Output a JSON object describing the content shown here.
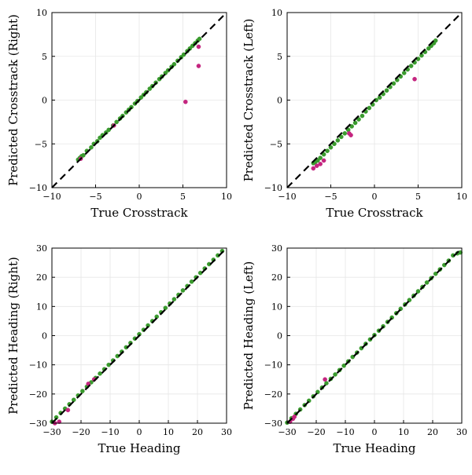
{
  "colors": {
    "green": "#3a9b2e",
    "magenta": "#c4257f",
    "diagonal": "#000000",
    "grid": "#e6e6e6"
  },
  "chart_data": [
    {
      "type": "scatter",
      "xlabel": "True Crosstrack",
      "ylabel": "Predicted Crosstrack (Right)",
      "xlim": [
        -10,
        10
      ],
      "ylim": [
        -10,
        10
      ],
      "xticks": [
        -10,
        -5,
        0,
        5,
        10
      ],
      "yticks": [
        -10,
        -5,
        0,
        5,
        10
      ],
      "grid": true,
      "reference_line": "y = x (dashed)",
      "series": [
        {
          "color": "green",
          "points": [
            [
              -7.0,
              -6.8
            ],
            [
              -6.8,
              -6.6
            ],
            [
              -6.6,
              -6.4
            ],
            [
              -6.4,
              -6.3
            ],
            [
              -6.0,
              -5.8
            ],
            [
              -5.5,
              -5.4
            ],
            [
              -5.2,
              -5.0
            ],
            [
              -4.8,
              -4.7
            ],
            [
              -4.5,
              -4.3
            ],
            [
              -4.2,
              -4.0
            ],
            [
              -3.8,
              -3.7
            ],
            [
              -3.5,
              -3.4
            ],
            [
              -3.0,
              -2.9
            ],
            [
              -2.6,
              -2.5
            ],
            [
              -2.2,
              -2.1
            ],
            [
              -1.9,
              -1.8
            ],
            [
              -1.5,
              -1.4
            ],
            [
              -1.2,
              -1.1
            ],
            [
              -0.9,
              -0.8
            ],
            [
              -0.5,
              -0.4
            ],
            [
              -0.2,
              -0.1
            ],
            [
              0.2,
              0.3
            ],
            [
              0.5,
              0.6
            ],
            [
              0.8,
              0.9
            ],
            [
              1.2,
              1.3
            ],
            [
              1.5,
              1.6
            ],
            [
              1.9,
              2.0
            ],
            [
              2.3,
              2.4
            ],
            [
              2.6,
              2.7
            ],
            [
              3.0,
              3.1
            ],
            [
              3.3,
              3.4
            ],
            [
              3.7,
              3.8
            ],
            [
              4.0,
              4.1
            ],
            [
              4.4,
              4.5
            ],
            [
              4.8,
              4.9
            ],
            [
              5.1,
              5.2
            ],
            [
              5.5,
              5.6
            ],
            [
              5.8,
              5.9
            ],
            [
              6.1,
              6.2
            ],
            [
              6.4,
              6.5
            ],
            [
              6.7,
              6.8
            ],
            [
              6.9,
              7.0
            ]
          ]
        },
        {
          "color": "magenta",
          "points": [
            [
              -2.9,
              -2.9
            ],
            [
              5.3,
              -0.2
            ],
            [
              6.8,
              3.9
            ],
            [
              6.8,
              6.1
            ],
            [
              -6.7,
              -6.7
            ]
          ]
        }
      ]
    },
    {
      "type": "scatter",
      "xlabel": "True Crosstrack",
      "ylabel": "Predicted Crosstrack (Left)",
      "xlim": [
        -10,
        10
      ],
      "ylim": [
        -10,
        10
      ],
      "xticks": [
        -10,
        -5,
        0,
        5,
        10
      ],
      "yticks": [
        -10,
        -5,
        0,
        5,
        10
      ],
      "grid": true,
      "reference_line": "y = x (dashed)",
      "series": [
        {
          "color": "green",
          "points": [
            [
              -7.0,
              -7.2
            ],
            [
              -6.8,
              -7.1
            ],
            [
              -6.5,
              -6.9
            ],
            [
              -6.2,
              -6.6
            ],
            [
              -5.8,
              -6.2
            ],
            [
              -5.4,
              -5.8
            ],
            [
              -5.0,
              -5.4
            ],
            [
              -4.6,
              -5.0
            ],
            [
              -4.2,
              -4.6
            ],
            [
              -3.8,
              -4.2
            ],
            [
              -3.4,
              -3.8
            ],
            [
              -3.0,
              -3.4
            ],
            [
              -2.6,
              -3.0
            ],
            [
              -2.2,
              -2.6
            ],
            [
              -1.8,
              -2.2
            ],
            [
              -1.4,
              -1.8
            ],
            [
              -1.0,
              -1.3
            ],
            [
              -0.6,
              -0.9
            ],
            [
              -0.2,
              -0.5
            ],
            [
              0.2,
              0.0
            ],
            [
              0.6,
              0.3
            ],
            [
              1.0,
              0.7
            ],
            [
              1.4,
              1.1
            ],
            [
              1.8,
              1.5
            ],
            [
              2.2,
              1.9
            ],
            [
              2.6,
              2.3
            ],
            [
              3.0,
              2.7
            ],
            [
              3.4,
              3.1
            ],
            [
              3.8,
              3.5
            ],
            [
              4.2,
              3.9
            ],
            [
              4.6,
              4.3
            ],
            [
              5.0,
              4.7
            ],
            [
              5.4,
              5.1
            ],
            [
              5.8,
              5.5
            ],
            [
              6.2,
              5.9
            ],
            [
              6.5,
              6.2
            ],
            [
              6.8,
              6.5
            ],
            [
              7.0,
              6.8
            ]
          ]
        },
        {
          "color": "magenta",
          "points": [
            [
              -7.0,
              -7.8
            ],
            [
              -6.6,
              -7.5
            ],
            [
              -6.2,
              -7.3
            ],
            [
              -5.8,
              -6.9
            ],
            [
              -2.9,
              -3.8
            ],
            [
              -2.7,
              -4.0
            ],
            [
              4.6,
              2.4
            ]
          ]
        }
      ]
    },
    {
      "type": "scatter",
      "xlabel": "True Heading",
      "ylabel": "Predicted Heading (Right)",
      "xlim": [
        -30,
        30
      ],
      "ylim": [
        -30,
        30
      ],
      "xticks": [
        -30,
        -20,
        -10,
        0,
        10,
        20,
        30
      ],
      "yticks": [
        -30,
        -20,
        -10,
        0,
        10,
        20,
        30
      ],
      "grid": true,
      "reference_line": "y = x (dashed)",
      "series": [
        {
          "color": "green",
          "points": [
            [
              -30,
              -29.5
            ],
            [
              -28.5,
              -28
            ],
            [
              -27,
              -26.5
            ],
            [
              -25.5,
              -25
            ],
            [
              -24,
              -23.5
            ],
            [
              -22.5,
              -22
            ],
            [
              -21,
              -20.5
            ],
            [
              -19.5,
              -19
            ],
            [
              -18,
              -17.5
            ],
            [
              -16.5,
              -16
            ],
            [
              -15,
              -14.5
            ],
            [
              -13.5,
              -13
            ],
            [
              -12,
              -11.5
            ],
            [
              -10.5,
              -10
            ],
            [
              -9,
              -8.5
            ],
            [
              -7.5,
              -7
            ],
            [
              -6,
              -5.5
            ],
            [
              -4.5,
              -4
            ],
            [
              -3,
              -2.5
            ],
            [
              -1.5,
              -1
            ],
            [
              0,
              0.5
            ],
            [
              1.5,
              2
            ],
            [
              3,
              3.5
            ],
            [
              4.5,
              5
            ],
            [
              6,
              6.5
            ],
            [
              7.5,
              8
            ],
            [
              9,
              9.5
            ],
            [
              10.5,
              11
            ],
            [
              12,
              12.5
            ],
            [
              13.5,
              14
            ],
            [
              15,
              15.5
            ],
            [
              16.5,
              17
            ],
            [
              18,
              18.5
            ],
            [
              19.5,
              20
            ],
            [
              21,
              21.5
            ],
            [
              22.5,
              23
            ],
            [
              24,
              24.5
            ],
            [
              25.5,
              26
            ],
            [
              27,
              27.5
            ],
            [
              28.5,
              29
            ]
          ]
        },
        {
          "color": "magenta",
          "points": [
            [
              -29,
              -30
            ],
            [
              -27.5,
              -29.5
            ],
            [
              -24.5,
              -25.5
            ],
            [
              -17.5,
              -16.5
            ],
            [
              -15.5,
              -15
            ]
          ]
        }
      ]
    },
    {
      "type": "scatter",
      "xlabel": "True Heading",
      "ylabel": "Predicted Heading (Left)",
      "xlim": [
        -30,
        30
      ],
      "ylim": [
        -30,
        30
      ],
      "xticks": [
        -30,
        -20,
        -10,
        0,
        10,
        20,
        30
      ],
      "yticks": [
        -30,
        -20,
        -10,
        0,
        10,
        20,
        30
      ],
      "grid": true,
      "reference_line": "y = x (dashed)",
      "series": [
        {
          "color": "green",
          "points": [
            [
              -30,
              -29.8
            ],
            [
              -28.5,
              -28.3
            ],
            [
              -27,
              -26.8
            ],
            [
              -25.5,
              -25.3
            ],
            [
              -24,
              -23.8
            ],
            [
              -22.5,
              -22.3
            ],
            [
              -21,
              -20.8
            ],
            [
              -19.5,
              -19.3
            ],
            [
              -18,
              -17.8
            ],
            [
              -16.5,
              -16.3
            ],
            [
              -15,
              -14.8
            ],
            [
              -13.5,
              -13.3
            ],
            [
              -12,
              -11.8
            ],
            [
              -10.5,
              -10.3
            ],
            [
              -9,
              -8.8
            ],
            [
              -7.5,
              -7.3
            ],
            [
              -6,
              -5.8
            ],
            [
              -4.5,
              -4.3
            ],
            [
              -3,
              -2.8
            ],
            [
              -1.5,
              -1.3
            ],
            [
              0,
              0.2
            ],
            [
              1.5,
              1.7
            ],
            [
              3,
              3.2
            ],
            [
              4.5,
              4.7
            ],
            [
              6,
              6.2
            ],
            [
              7.5,
              7.7
            ],
            [
              9,
              9.2
            ],
            [
              10.5,
              10.7
            ],
            [
              12,
              12.2
            ],
            [
              13.5,
              13.7
            ],
            [
              15,
              15.2
            ],
            [
              16.5,
              16.7
            ],
            [
              18,
              18.2
            ],
            [
              19.5,
              19.7
            ],
            [
              21,
              21.2
            ],
            [
              22.5,
              22.7
            ],
            [
              24,
              24.2
            ],
            [
              25.5,
              25.7
            ],
            [
              27,
              27.5
            ],
            [
              28.5,
              28.2
            ],
            [
              29.5,
              28.5
            ]
          ]
        },
        {
          "color": "magenta",
          "points": [
            [
              -29,
              -29.5
            ],
            [
              -27.5,
              -27.8
            ],
            [
              -17,
              -15
            ],
            [
              -28,
              -28.5
            ]
          ]
        }
      ]
    }
  ]
}
